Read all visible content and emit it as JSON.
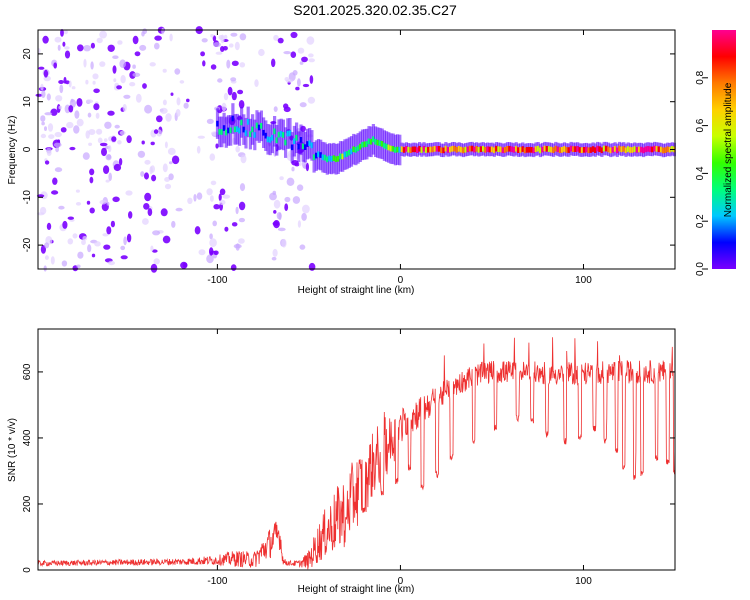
{
  "figure_title": "S201.2025.320.02.35.C27",
  "chart_data": [
    {
      "type": "heatmap",
      "title": "S201.2025.320.02.35.C27",
      "xlabel": "Height of straight line (km)",
      "ylabel": "Frequency (Hz)",
      "xlim": [
        -198,
        150
      ],
      "ylim": [
        -25,
        25
      ],
      "xticks": [
        -100,
        0,
        100
      ],
      "yticks": [
        -20,
        -10,
        0,
        10,
        20
      ],
      "ridge_x": [
        -100,
        -90,
        -80,
        -70,
        -60,
        -50,
        -45,
        -40,
        -35,
        -30,
        -25,
        -20,
        -15,
        -10,
        -5,
        0,
        10,
        20,
        50,
        100,
        150
      ],
      "ridge_y": [
        5,
        5,
        4,
        3,
        2,
        0,
        -1,
        -2,
        -2,
        -1,
        0,
        1,
        2,
        1,
        0,
        0,
        0,
        0,
        0,
        0,
        0
      ],
      "description_series": "Normalized spectral amplitude along peak frequency; noise scatter for x < -55 km, strong narrow 0 Hz line for x > 0 km",
      "colorbar": {
        "label": "Normalized spectral amplitude",
        "ticks": [
          "0.0",
          "0.2",
          "0.4",
          "0.6",
          "0.8"
        ],
        "range": [
          0,
          1
        ],
        "colors": [
          "#7a00ff",
          "#0000ff",
          "#00c8ff",
          "#00ff7a",
          "#32ff00",
          "#c8ff00",
          "#ffd000",
          "#ff7a00",
          "#ff0000",
          "#ff0090"
        ]
      }
    },
    {
      "type": "line",
      "xlabel": "Height of straight line (km)",
      "ylabel": "SNR (10 * v/v)",
      "xlim": [
        -198,
        150
      ],
      "ylim": [
        0,
        730
      ],
      "xticks": [
        -100,
        0,
        100
      ],
      "yticks": [
        0,
        200,
        400,
        600
      ],
      "line_color": "#ee3030",
      "envelope_x": [
        -198,
        -120,
        -100,
        -90,
        -80,
        -75,
        -70,
        -66,
        -64,
        -60,
        -55,
        -50,
        -45,
        -40,
        -35,
        -30,
        -25,
        -20,
        -15,
        -10,
        -5,
        0,
        10,
        20,
        30,
        40,
        50,
        60,
        80,
        100,
        120,
        150
      ],
      "envelope_base": [
        20,
        25,
        30,
        35,
        30,
        60,
        90,
        110,
        25,
        20,
        20,
        30,
        80,
        120,
        150,
        180,
        230,
        270,
        320,
        360,
        390,
        430,
        480,
        520,
        560,
        590,
        600,
        600,
        595,
        595,
        600,
        600
      ],
      "envelope_noise": [
        8,
        10,
        15,
        25,
        25,
        40,
        50,
        50,
        10,
        8,
        10,
        30,
        60,
        80,
        100,
        110,
        110,
        110,
        100,
        100,
        80,
        60,
        50,
        40,
        35,
        35,
        35,
        35,
        35,
        35,
        35,
        35
      ],
      "dropouts_x": [
        -30,
        -20,
        -10,
        -2,
        5,
        12,
        20,
        28,
        40,
        52,
        64,
        72,
        80,
        90,
        98,
        106,
        112,
        118,
        122,
        128,
        132,
        140,
        146,
        150
      ],
      "dropouts_y": [
        150,
        170,
        220,
        260,
        300,
        240,
        280,
        330,
        380,
        420,
        450,
        440,
        400,
        380,
        390,
        420,
        380,
        350,
        300,
        270,
        280,
        330,
        320,
        290
      ]
    }
  ]
}
